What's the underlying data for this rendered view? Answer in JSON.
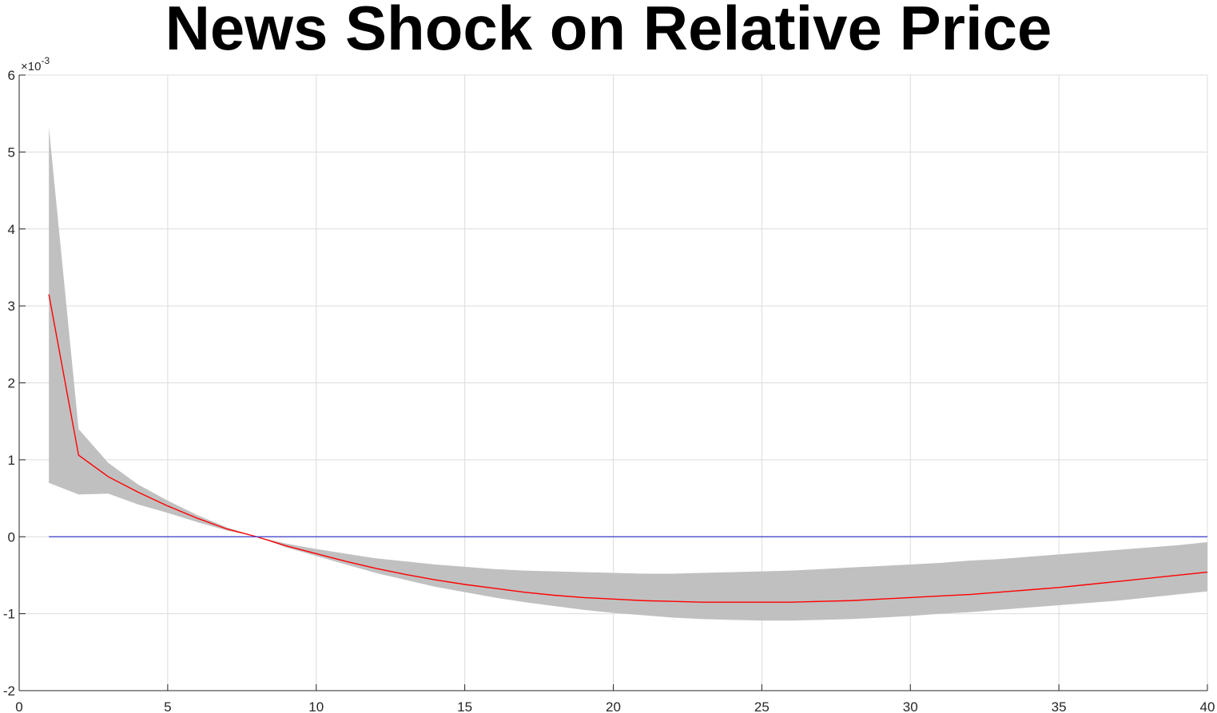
{
  "chart_data": {
    "type": "line",
    "title": "News Shock on Relative Price",
    "xlabel": "",
    "ylabel": "",
    "xlim": [
      0,
      40
    ],
    "ylim": [
      -2,
      6
    ],
    "y_scale_factor": "×10",
    "y_scale_exponent": "-3",
    "grid": true,
    "x_ticks": [
      "0",
      "5",
      "10",
      "15",
      "20",
      "25",
      "30",
      "35",
      "40"
    ],
    "y_ticks": [
      "-2",
      "-1",
      "0",
      "1",
      "2",
      "3",
      "4",
      "5",
      "6"
    ],
    "x": [
      1,
      2,
      3,
      4,
      5,
      6,
      7,
      8,
      9,
      10,
      11,
      12,
      13,
      14,
      15,
      16,
      17,
      18,
      19,
      20,
      21,
      22,
      23,
      24,
      25,
      26,
      27,
      28,
      29,
      30,
      31,
      32,
      33,
      34,
      35,
      36,
      37,
      38,
      39,
      40
    ],
    "series": [
      {
        "role": "response",
        "color": "#ff0000",
        "values": [
          3.15,
          1.06,
          0.78,
          0.58,
          0.4,
          0.24,
          0.1,
          0.0,
          -0.12,
          -0.22,
          -0.32,
          -0.41,
          -0.49,
          -0.56,
          -0.62,
          -0.67,
          -0.72,
          -0.76,
          -0.79,
          -0.81,
          -0.83,
          -0.84,
          -0.85,
          -0.85,
          -0.85,
          -0.85,
          -0.84,
          -0.83,
          -0.81,
          -0.79,
          -0.77,
          -0.75,
          -0.72,
          -0.69,
          -0.66,
          -0.62,
          -0.58,
          -0.54,
          -0.5,
          -0.46
        ]
      },
      {
        "role": "zero-line",
        "color": "#3a3acc",
        "values": [
          0,
          0,
          0,
          0,
          0,
          0,
          0,
          0,
          0,
          0,
          0,
          0,
          0,
          0,
          0,
          0,
          0,
          0,
          0,
          0,
          0,
          0,
          0,
          0,
          0,
          0,
          0,
          0,
          0,
          0,
          0,
          0,
          0,
          0,
          0,
          0,
          0,
          0,
          0,
          0
        ]
      }
    ],
    "band": {
      "color": "#c0c0c0",
      "upper": [
        5.32,
        1.4,
        0.96,
        0.68,
        0.47,
        0.28,
        0.12,
        0.0,
        -0.09,
        -0.16,
        -0.22,
        -0.28,
        -0.32,
        -0.36,
        -0.39,
        -0.42,
        -0.44,
        -0.45,
        -0.46,
        -0.47,
        -0.48,
        -0.48,
        -0.47,
        -0.46,
        -0.45,
        -0.44,
        -0.42,
        -0.4,
        -0.38,
        -0.36,
        -0.34,
        -0.31,
        -0.29,
        -0.26,
        -0.23,
        -0.2,
        -0.17,
        -0.14,
        -0.11,
        -0.07
      ],
      "lower": [
        0.7,
        0.55,
        0.56,
        0.42,
        0.31,
        0.19,
        0.08,
        0.0,
        -0.14,
        -0.25,
        -0.36,
        -0.47,
        -0.56,
        -0.65,
        -0.72,
        -0.79,
        -0.85,
        -0.9,
        -0.95,
        -0.99,
        -1.02,
        -1.05,
        -1.07,
        -1.08,
        -1.09,
        -1.09,
        -1.08,
        -1.07,
        -1.05,
        -1.03,
        -1.0,
        -0.98,
        -0.95,
        -0.92,
        -0.89,
        -0.86,
        -0.83,
        -0.79,
        -0.75,
        -0.71
      ]
    }
  }
}
